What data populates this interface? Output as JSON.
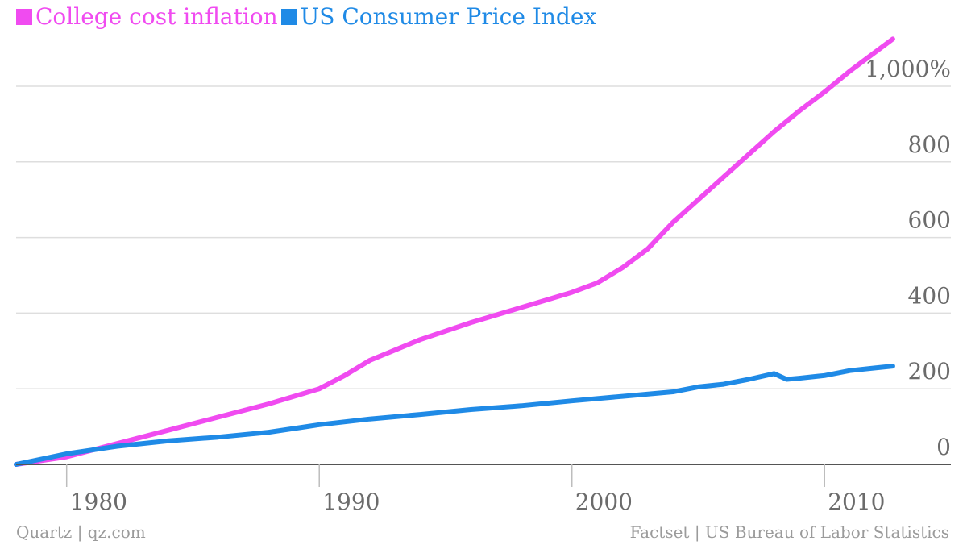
{
  "legend": {
    "series1_label": "College cost inflation",
    "series2_label": "US Consumer Price Index"
  },
  "footer": {
    "left": "Quartz | qz.com",
    "right": "Factset | US Bureau of Labor Statistics"
  },
  "colors": {
    "college": "#f04bf0",
    "cpi": "#1f8ae6",
    "grid": "#dedede",
    "axis": "#555555",
    "text": "#6b6b6b"
  },
  "chart_data": {
    "type": "line",
    "title": "",
    "xlabel": "",
    "ylabel": "",
    "xlim": [
      1978,
      2015
    ],
    "ylim": [
      0,
      1000
    ],
    "x_ticks": [
      1980,
      1990,
      2000,
      2010
    ],
    "x_tick_labels": [
      "1980",
      "1990",
      "2000",
      "2010"
    ],
    "y_ticks": [
      0,
      200,
      400,
      600,
      800,
      1000
    ],
    "y_tick_labels": [
      "0",
      "200",
      "400",
      "600",
      "800",
      "1,000%"
    ],
    "y_axis_position": "right",
    "grid": true,
    "legend_position": "top-left",
    "series": [
      {
        "name": "College cost inflation",
        "color": "#f04bf0",
        "x": [
          1978,
          1980,
          1982,
          1984,
          1986,
          1988,
          1990,
          1991,
          1992,
          1994,
          1996,
          1998,
          1999,
          2000,
          2001,
          2002,
          2003,
          2004,
          2005,
          2006,
          2007,
          2008,
          2009,
          2010,
          2011,
          2012,
          2012.7
        ],
        "y": [
          0,
          20,
          55,
          90,
          125,
          160,
          200,
          235,
          275,
          330,
          375,
          415,
          435,
          455,
          480,
          520,
          570,
          640,
          700,
          760,
          820,
          880,
          935,
          985,
          1040,
          1090,
          1125
        ]
      },
      {
        "name": "US Consumer Price Index",
        "color": "#1f8ae6",
        "x": [
          1978,
          1980,
          1982,
          1984,
          1986,
          1988,
          1990,
          1992,
          1994,
          1996,
          1998,
          2000,
          2002,
          2004,
          2005,
          2006,
          2007,
          2008,
          2008.5,
          2009,
          2010,
          2011,
          2012,
          2012.7
        ],
        "y": [
          0,
          28,
          48,
          62,
          72,
          85,
          105,
          120,
          132,
          145,
          155,
          168,
          180,
          192,
          205,
          212,
          225,
          240,
          225,
          228,
          235,
          248,
          255,
          260
        ]
      }
    ]
  }
}
